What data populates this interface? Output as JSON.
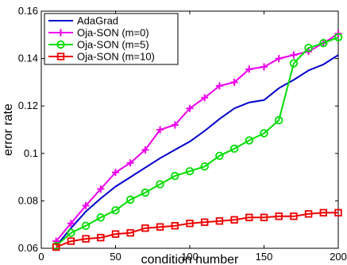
{
  "chart_data": {
    "type": "line",
    "title": "",
    "xlabel": "condition number",
    "ylabel": "error rate",
    "xlim": [
      0,
      200
    ],
    "ylim": [
      0.06,
      0.16
    ],
    "xticks": [
      0,
      50,
      100,
      150,
      200
    ],
    "yticks": [
      0.06,
      0.08,
      0.1,
      0.12,
      0.14,
      0.16
    ],
    "ytick_labels": [
      "0.06",
      "0.08",
      "0.1",
      "0.12",
      "0.14",
      "0.16"
    ],
    "grid": false,
    "legend_position": "top-left",
    "x": [
      10,
      20,
      30,
      40,
      50,
      60,
      70,
      80,
      90,
      100,
      110,
      120,
      130,
      140,
      150,
      160,
      170,
      180,
      190,
      200
    ],
    "series": [
      {
        "name": "AdaGrad",
        "color": "#0000cc",
        "marker": "none",
        "values": [
          0.061,
          0.0685,
          0.0755,
          0.081,
          0.086,
          0.09,
          0.094,
          0.098,
          0.1015,
          0.105,
          0.1095,
          0.1145,
          0.119,
          0.1215,
          0.1225,
          0.1275,
          0.131,
          0.135,
          0.1375,
          0.1415
        ]
      },
      {
        "name": "Oja-SON (m=0)",
        "color": "#ee00ee",
        "marker": "plus",
        "values": [
          0.063,
          0.0705,
          0.078,
          0.085,
          0.092,
          0.096,
          0.1015,
          0.11,
          0.112,
          0.119,
          0.1235,
          0.1285,
          0.13,
          0.1355,
          0.1365,
          0.14,
          0.1415,
          0.143,
          0.1465,
          0.1505
        ]
      },
      {
        "name": "Oja-SON (m=5)",
        "color": "#00dd00",
        "marker": "circle",
        "values": [
          0.061,
          0.0665,
          0.0695,
          0.073,
          0.076,
          0.0805,
          0.0835,
          0.087,
          0.0905,
          0.0925,
          0.0945,
          0.099,
          0.102,
          0.1055,
          0.1085,
          0.114,
          0.138,
          0.1445,
          0.1465,
          0.149
        ]
      },
      {
        "name": "Oja-SON (m=10)",
        "color": "#ee0000",
        "marker": "square",
        "values": [
          0.0605,
          0.063,
          0.064,
          0.0645,
          0.066,
          0.0665,
          0.0685,
          0.069,
          0.0695,
          0.0705,
          0.071,
          0.0715,
          0.072,
          0.073,
          0.073,
          0.0735,
          0.0735,
          0.0745,
          0.075,
          0.075
        ]
      }
    ]
  }
}
